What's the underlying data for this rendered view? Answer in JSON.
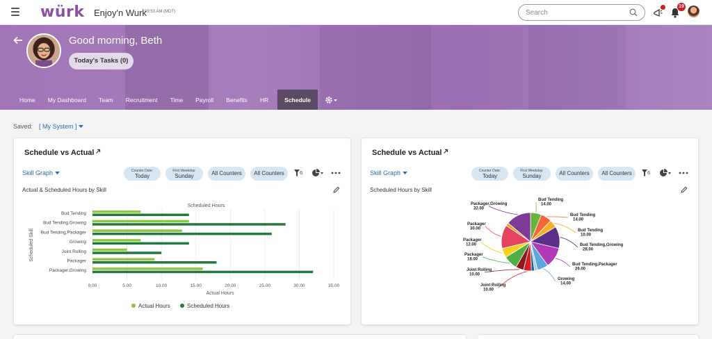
{
  "topbar": {
    "logo": "würk",
    "title": "Enjoy'n Wurk",
    "time": "09:53 AM (MDT)",
    "search_placeholder": "Search",
    "notification_count": "19"
  },
  "hero": {
    "greeting": "Good morning, Beth",
    "tasks_label": "Today's Tasks (0)",
    "nav": [
      "Home",
      "My Dashboard",
      "Team",
      "Recruitment",
      "Time",
      "Payroll",
      "Benefits",
      "HR",
      "Schedule"
    ],
    "active_nav": "Schedule"
  },
  "saved": {
    "label": "Saved:",
    "value": "[ My System ]"
  },
  "cards": [
    {
      "title": "Schedule vs Actual",
      "graph_select": "Skill Graph",
      "pills": [
        {
          "small": "Counter Date:",
          "big": "Today"
        },
        {
          "small": "First Weekday:",
          "big": "Sunday"
        },
        {
          "label": "All Counters"
        },
        {
          "label": "All Counters"
        }
      ],
      "filter_count": "6",
      "chart_title": "Actual & Scheduled Hours by Skill"
    },
    {
      "title": "Schedule vs Actual",
      "graph_select": "Skill Graph",
      "pills": [
        {
          "small": "Counter Date:",
          "big": "Today"
        },
        {
          "small": "First Weekday:",
          "big": "Sunday"
        },
        {
          "label": "All Counters"
        },
        {
          "label": "All Counters"
        }
      ],
      "filter_count": "6",
      "chart_title": "Scheduled Hours by Skill"
    }
  ],
  "chart_data": [
    {
      "type": "bar",
      "orientation": "horizontal",
      "title": "Scheduled Hours",
      "xlabel": "Actual Hours",
      "ylabel": "Scheduled Skill",
      "categories": [
        "Bud Tending",
        "Bud Tending,Growing",
        "Bud Tending,Packager",
        "Growing",
        "Joint Rolling",
        "Packager",
        "Packager,Growing"
      ],
      "series": [
        {
          "name": "Actual Hours",
          "color": "#8dc63f",
          "values": [
            7,
            14,
            13,
            7,
            5,
            9,
            16
          ]
        },
        {
          "name": "Scheduled Hours",
          "color": "#217a3c",
          "values": [
            14,
            28,
            26,
            14,
            10,
            18,
            32
          ]
        }
      ],
      "xlim": [
        0,
        35
      ],
      "xticks": [
        "0.00",
        "5.00",
        "10.00",
        "15.00",
        "20.00",
        "25.00",
        "30.00",
        "35.00"
      ],
      "legend": "bottom",
      "grid": true
    },
    {
      "type": "pie",
      "slices": [
        {
          "label": "Bud Tending",
          "value": "14.00",
          "color": "#6bb33f"
        },
        {
          "label": "Bud Tending",
          "value": "14.00",
          "color": "#f2673a"
        },
        {
          "label": "Bud Tending",
          "value": "10.00",
          "color": "#f5b21e"
        },
        {
          "label": "Bud Tending,Growing",
          "value": "28.00",
          "color": "#5b2f87"
        },
        {
          "label": "Bud Tending,Packager",
          "value": "26.00",
          "color": "#b03ab5"
        },
        {
          "label": "Growing",
          "value": "14.00",
          "color": "#5ba6dd"
        },
        {
          "label": "",
          "value": "",
          "color": "#a6cfee"
        },
        {
          "label": "",
          "value": "",
          "color": "#1f5e9e"
        },
        {
          "label": "Joint Rolling",
          "value": "10.00",
          "color": "#d42026"
        },
        {
          "label": "Joint Rolling",
          "value": "10.00",
          "color": "#8b1a1a"
        },
        {
          "label": "Packager",
          "value": "18.00",
          "color": "#4fae48"
        },
        {
          "label": "Packager",
          "value": "12.00",
          "color": "#f5d11e"
        },
        {
          "label": "Packager",
          "value": "30.00",
          "color": "#e4435f"
        },
        {
          "label": "",
          "value": "",
          "color": "#f59a1e"
        },
        {
          "label": "Packager,Growing",
          "value": "32.00",
          "color": "#7d3b98"
        }
      ]
    }
  ]
}
